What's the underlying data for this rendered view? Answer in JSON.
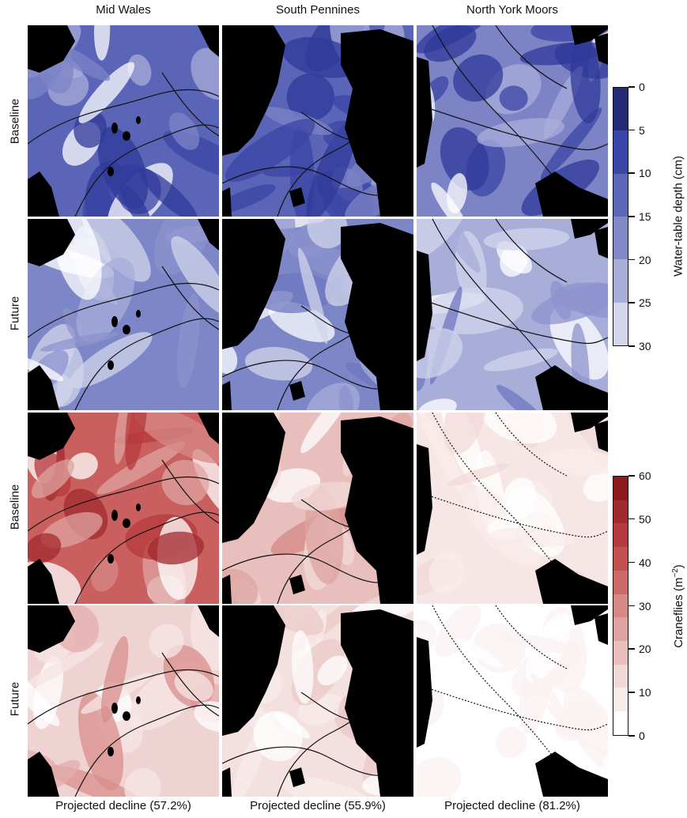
{
  "columns": [
    "Mid Wales",
    "South Pennines",
    "North York Moors"
  ],
  "rows": [
    "Baseline",
    "Future",
    "Baseline",
    "Future"
  ],
  "bottom_labels": [
    "Projected decline (57.2%)",
    "Projected decline (55.9%)",
    "Projected decline (81.2%)"
  ],
  "legend_water": {
    "title": "Water-table depth (cm)",
    "ticks": [
      "0",
      "5",
      "10",
      "15",
      "20",
      "25",
      "30"
    ],
    "colors": [
      "#262b78",
      "#3a47a8",
      "#5a66b8",
      "#8189c8",
      "#a9aed9",
      "#d4d6ec",
      "#ffffff"
    ]
  },
  "legend_crane": {
    "title_main": "Craneflies (m",
    "title_sup": "−2",
    "title_end": ")",
    "ticks": [
      "60",
      "50",
      "40",
      "30",
      "20",
      "10",
      "0"
    ],
    "colors": [
      "#8b1a1f",
      "#a12a2f",
      "#b5393d",
      "#c2504f",
      "#cb6a68",
      "#d58885",
      "#dea3a0",
      "#e8bfbd",
      "#f1d9d8",
      "#f8eceb",
      "#ffffff"
    ]
  },
  "colors": {
    "water_fill": [
      "#3b46a6",
      "#5763b7",
      "#7c84c6",
      "#5e68b9",
      "#6a73bf"
    ],
    "crane_fill": [
      "#c24c4f",
      "#dfa7a6",
      "#f2dcdc"
    ],
    "land": "#000000"
  }
}
